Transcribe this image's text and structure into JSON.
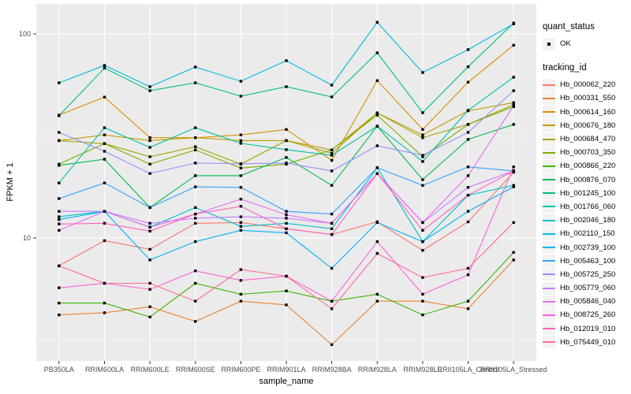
{
  "axes": {
    "x_title": "sample_name",
    "y_title": "FPKM + 1"
  },
  "legend": {
    "quant_title": "quant_status",
    "quant_items": [
      {
        "label": "OK",
        "marker": "black-square"
      }
    ],
    "tracking_title": "tracking_id"
  },
  "colors": {
    "panel_bg": "#EBEBEB",
    "grid": "#FFFFFF",
    "axis_text": "#4D4D4D",
    "tick_mark": "#333333",
    "point": "#000000",
    "legend_key_bg": "#F2F2F2"
  },
  "chart_data": {
    "type": "line",
    "title": "",
    "xlabel": "sample_name",
    "ylabel": "FPKM + 1",
    "y_scale": "log10",
    "y_tick_values": [
      100,
      10
    ],
    "y_tick_labels": [
      "100",
      "10"
    ],
    "y_minor_gridlines": [
      31.623,
      3.1623
    ],
    "ylim_log10": [
      0.38,
      2.15
    ],
    "grid": true,
    "legend_position": "right",
    "point_marker": "black-square",
    "quant_status": "OK",
    "categories": [
      "PB350LA",
      "RRIM600LA",
      "RRIM600LE",
      "RRIM600SE",
      "RRIM600PE",
      "RRIM901LA",
      "RRIM928BA",
      "RRIM928LA",
      "RRIM928LE",
      "RRII105LA_Control",
      "RRII105LA_Stressed"
    ],
    "series": [
      {
        "name": "Hb_000062_220",
        "color": "#F8766D",
        "values": [
          7.3,
          9.7,
          8.8,
          11.8,
          11.9,
          11.1,
          10.4,
          12.0,
          8.7,
          12.0,
          21.0
        ]
      },
      {
        "name": "Hb_000331_550",
        "color": "#EA8331",
        "values": [
          4.2,
          4.3,
          4.6,
          3.9,
          4.9,
          4.7,
          3.0,
          4.9,
          4.9,
          4.5,
          7.8
        ]
      },
      {
        "name": "Hb_000614_160",
        "color": "#D89000",
        "values": [
          40,
          49,
          31,
          31,
          32,
          34,
          24,
          59,
          34,
          58,
          88
        ]
      },
      {
        "name": "Hb_000676_180",
        "color": "#C09B00",
        "values": [
          30,
          32,
          30,
          31,
          30,
          30,
          27,
          41,
          32,
          42,
          46
        ]
      },
      {
        "name": "Hb_000684_470",
        "color": "#A3A500",
        "values": [
          30,
          29,
          25,
          28,
          23,
          30,
          26,
          41,
          31,
          36,
          45
        ]
      },
      {
        "name": "Hb_000703_350",
        "color": "#7CAE00",
        "values": [
          23,
          29,
          23,
          27,
          22,
          23,
          27,
          40,
          25,
          36,
          44
        ]
      },
      {
        "name": "Hb_000866_220",
        "color": "#39B600",
        "values": [
          4.8,
          4.8,
          4.1,
          6.0,
          5.3,
          5.5,
          4.9,
          5.3,
          4.2,
          4.9,
          8.5
        ]
      },
      {
        "name": "Hb_000876_070",
        "color": "#00BB4E",
        "values": [
          22.7,
          24.3,
          14.1,
          20.2,
          20.2,
          24.8,
          18.1,
          35.3,
          19.3,
          30.4,
          36.0
        ]
      },
      {
        "name": "Hb_001245_100",
        "color": "#00BF7D",
        "values": [
          39.7,
          68,
          52.7,
          57.6,
          49.5,
          55.1,
          49.1,
          80.8,
          41.1,
          69,
          113
        ]
      },
      {
        "name": "Hb_001766_060",
        "color": "#00C1A3",
        "values": [
          18.6,
          34.7,
          27.8,
          34.7,
          29.1,
          27.1,
          25.4,
          35.3,
          23.7,
          42.2,
          61.3
        ]
      },
      {
        "name": "Hb_002046_180",
        "color": "#00BFC4",
        "values": [
          12.7,
          13.5,
          11.3,
          14.1,
          11.4,
          11.8,
          11.1,
          22.1,
          9.6,
          16.2,
          18.1
        ]
      },
      {
        "name": "Hb_002110_150",
        "color": "#00BAE0",
        "values": [
          57.6,
          70.1,
          55.1,
          68.8,
          58.6,
          73.9,
          56.1,
          114,
          64.7,
          83.7,
          112
        ]
      },
      {
        "name": "Hb_002739_100",
        "color": "#00B0F6",
        "values": [
          12.3,
          13.5,
          7.8,
          9.6,
          10.9,
          10.6,
          7.1,
          11.9,
          9.6,
          13.5,
          17.8
        ]
      },
      {
        "name": "Hb_005463_100",
        "color": "#35A2FF",
        "values": [
          15.6,
          18.6,
          14.1,
          17.8,
          17.7,
          13.5,
          13.1,
          22.1,
          18.1,
          22.3,
          21.3
        ]
      },
      {
        "name": "Hb_005725_250",
        "color": "#9590FF",
        "values": [
          32.9,
          26.6,
          20.7,
          23.3,
          23.1,
          23.3,
          21.3,
          28.3,
          25.4,
          32.9,
          52.7
        ]
      },
      {
        "name": "Hb_005779_060",
        "color": "#C77CFF",
        "values": [
          13.5,
          13.5,
          11.8,
          12.5,
          12.7,
          12.5,
          11.8,
          20.7,
          11.9,
          17.7,
          21.3
        ]
      },
      {
        "name": "Hb_005846_040",
        "color": "#E76BF3",
        "values": [
          10.9,
          13.5,
          11.3,
          13.1,
          15.5,
          13.0,
          11.8,
          20.7,
          11.9,
          20.2,
          44.5
        ]
      },
      {
        "name": "Hb_008725_260",
        "color": "#FA62DB",
        "values": [
          5.7,
          6.0,
          5.6,
          6.9,
          6.2,
          6.5,
          4.9,
          9.6,
          5.3,
          6.6,
          22.3
        ]
      },
      {
        "name": "Hb_012019_010",
        "color": "#FF62BC",
        "values": [
          11.7,
          11.8,
          10.8,
          13.1,
          14.3,
          11.1,
          10.4,
          20.7,
          10.9,
          16.2,
          21.3
        ]
      },
      {
        "name": "Hb_075449_010",
        "color": "#FF6A98",
        "values": [
          7.3,
          6.0,
          6.0,
          4.9,
          7.0,
          6.5,
          4.5,
          8.4,
          6.4,
          7.1,
          11.9
        ]
      }
    ]
  }
}
